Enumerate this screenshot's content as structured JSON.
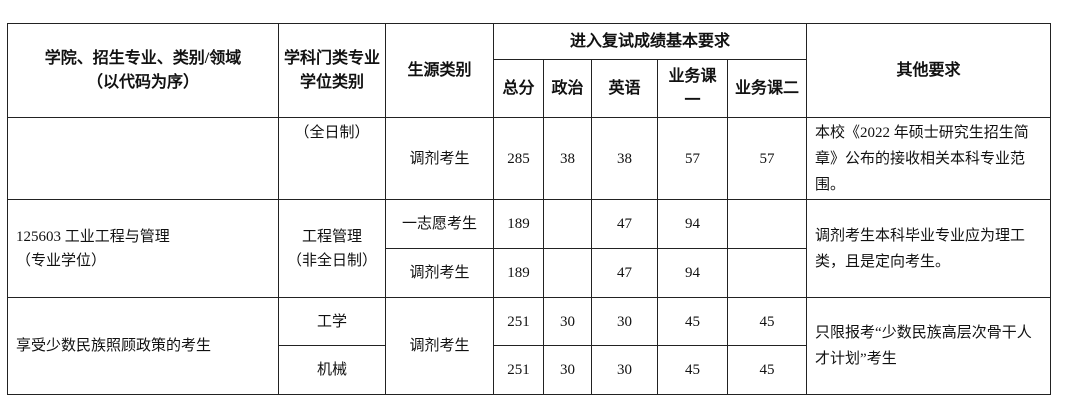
{
  "header": {
    "col_major": "学院、招生专业、类别/领域",
    "col_major_sub": "（以代码为序）",
    "col_category": "学科门类专业学位类别",
    "col_source": "生源类别",
    "col_scores": "进入复试成绩基本要求",
    "score_cols": [
      "总分",
      "政治",
      "英语",
      "业务课一",
      "业务课二"
    ],
    "col_other": "其他要求"
  },
  "rows": [
    {
      "category": "（全日制）",
      "source": "调剂考生",
      "scores": [
        "285",
        "38",
        "38",
        "57",
        "57"
      ],
      "other": "本校《2022 年硕士研究生招生简章》公布的接收相关本科专业范围。"
    },
    {
      "major": "125603 工业工程与管理",
      "major_sub": "（专业学位）",
      "category": "工程管理",
      "category_sub": "（非全日制）",
      "other": "调剂考生本科毕业专业应为理工类，且是定向考生。",
      "sub": [
        {
          "source": "一志愿考生",
          "scores": [
            "189",
            "",
            "47",
            "94",
            ""
          ]
        },
        {
          "source": "调剂考生",
          "scores": [
            "189",
            "",
            "47",
            "94",
            ""
          ]
        }
      ]
    },
    {
      "major": "享受少数民族照顾政策的考生",
      "source": "调剂考生",
      "other": "只限报考“少数民族高层次骨干人才计划”考生",
      "sub": [
        {
          "category": "工学",
          "scores": [
            "251",
            "30",
            "30",
            "45",
            "45"
          ]
        },
        {
          "category": "机械",
          "scores": [
            "251",
            "30",
            "30",
            "45",
            "45"
          ]
        }
      ]
    }
  ]
}
